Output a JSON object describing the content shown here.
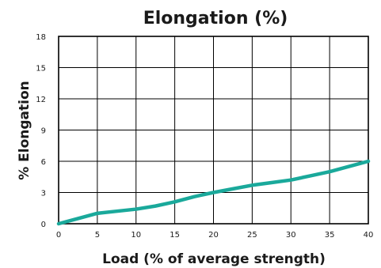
{
  "chart_data": {
    "type": "line",
    "title": "Elongation (%)",
    "xlabel": "Load (% of average strength)",
    "ylabel": "% Elongation",
    "xlim": [
      0,
      40
    ],
    "ylim": [
      0,
      18
    ],
    "xticks": [
      0,
      5,
      10,
      15,
      20,
      25,
      30,
      35,
      40
    ],
    "yticks": [
      0,
      3,
      6,
      9,
      12,
      15,
      18
    ],
    "grid": true,
    "series": [
      {
        "color": "#1aa99b",
        "x": [
          0,
          2.5,
          5,
          7.5,
          10,
          12.5,
          15,
          17.5,
          20,
          22.5,
          25,
          27.5,
          30,
          32.5,
          35,
          37.5,
          40
        ],
        "y": [
          0,
          0.5,
          1.0,
          1.2,
          1.4,
          1.7,
          2.1,
          2.6,
          3.0,
          3.35,
          3.7,
          3.95,
          4.2,
          4.6,
          5.0,
          5.5,
          6.0
        ]
      }
    ]
  }
}
